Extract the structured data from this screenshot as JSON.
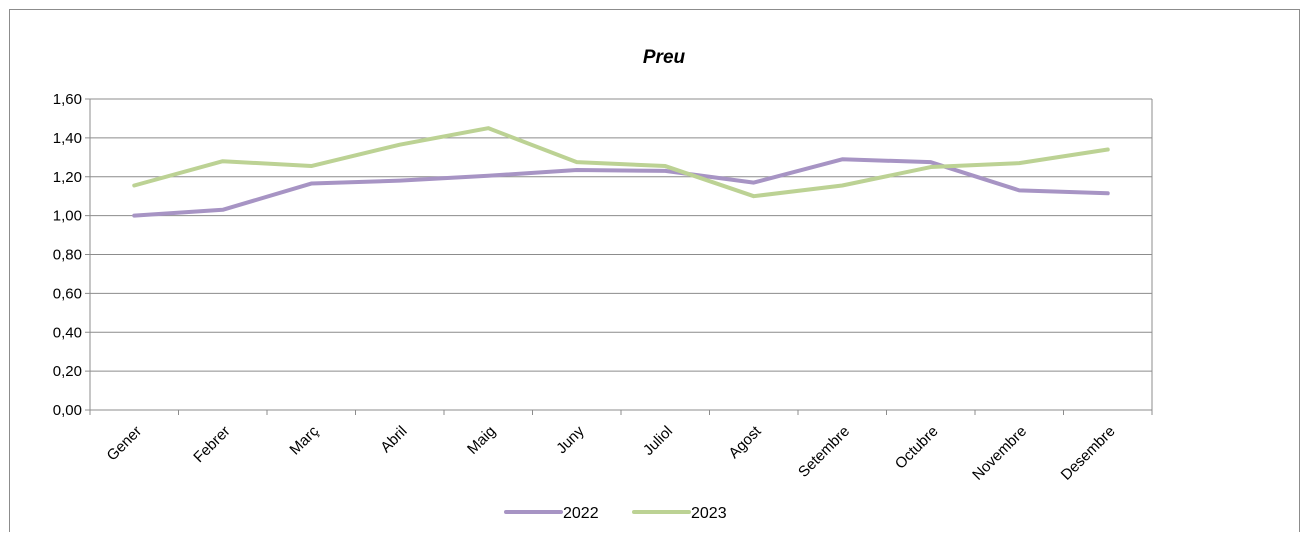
{
  "chart_data": {
    "type": "line",
    "title": "Preu",
    "xlabel": "",
    "ylabel": "",
    "categories": [
      "Gener",
      "Febrer",
      "Març",
      "Abril",
      "Maig",
      "Juny",
      "Juliol",
      "Agost",
      "Setembre",
      "Octubre",
      "Novembre",
      "Desembre"
    ],
    "series": [
      {
        "name": "2022",
        "color": "#a794c4",
        "values": [
          1.0,
          1.03,
          1.165,
          1.18,
          1.205,
          1.235,
          1.23,
          1.17,
          1.29,
          1.275,
          1.13,
          1.115
        ]
      },
      {
        "name": "2023",
        "color": "#bcd294",
        "values": [
          1.155,
          1.28,
          1.255,
          1.365,
          1.45,
          1.275,
          1.255,
          1.1,
          1.155,
          1.25,
          1.27,
          1.34
        ]
      }
    ],
    "ylim": [
      0,
      1.6
    ],
    "yticks": [
      "0,00",
      "0,20",
      "0,40",
      "0,60",
      "0,80",
      "1,00",
      "1,20",
      "1,40",
      "1,60"
    ],
    "grid": true,
    "legend_position": "bottom"
  }
}
